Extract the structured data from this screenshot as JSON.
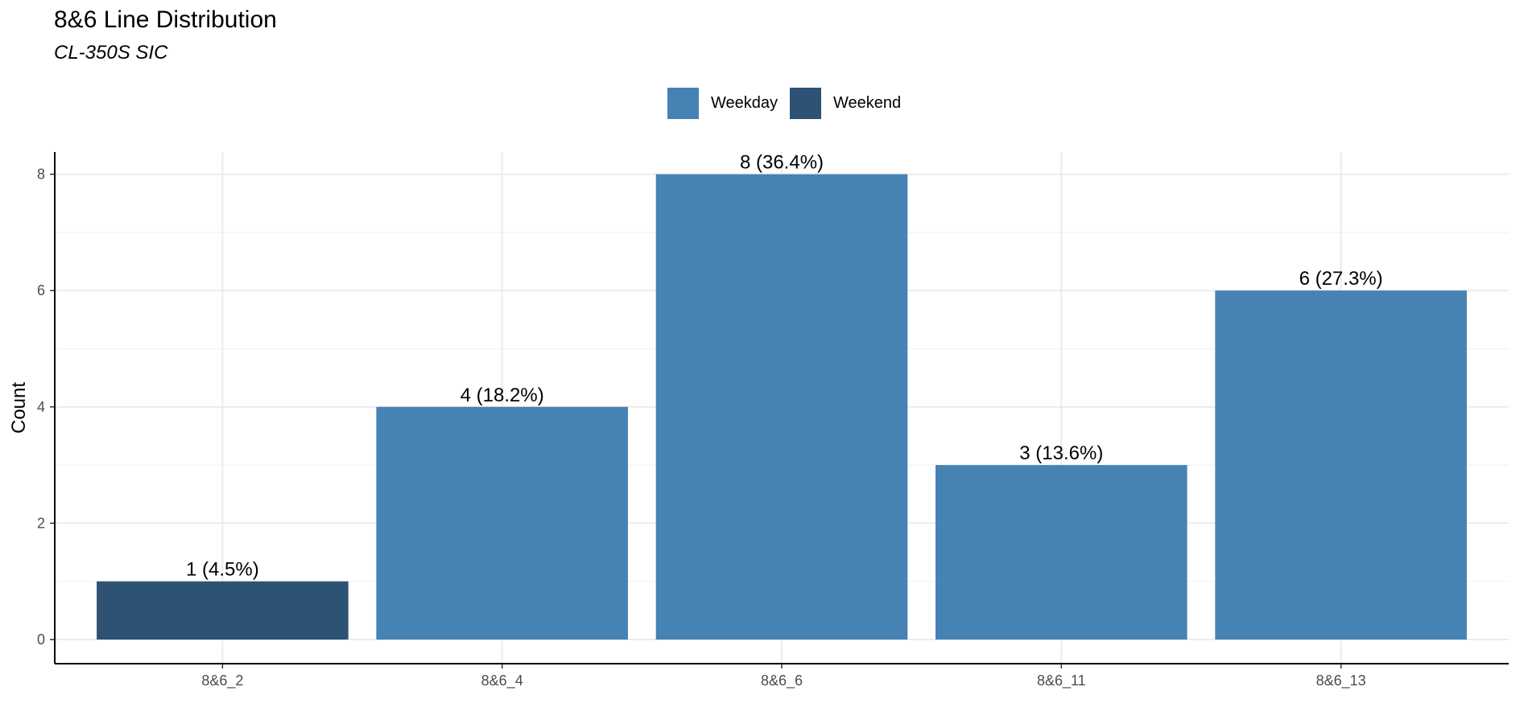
{
  "chart_data": {
    "type": "bar",
    "title": "8&6 Line Distribution",
    "subtitle": "CL-350S SIC",
    "xlabel": "",
    "ylabel": "Count",
    "categories": [
      "8&6_2",
      "8&6_4",
      "8&6_6",
      "8&6_11",
      "8&6_13"
    ],
    "values": [
      1,
      4,
      8,
      3,
      6
    ],
    "groups": [
      "Weekend",
      "Weekday",
      "Weekday",
      "Weekday",
      "Weekday"
    ],
    "data_labels": [
      "1 (4.5%)",
      "4 (18.2%)",
      "8 (36.4%)",
      "3 (13.6%)",
      "6 (27.3%)"
    ],
    "ylim": [
      0,
      8.4
    ],
    "yticks": [
      0,
      2,
      4,
      6,
      8
    ],
    "grid": true,
    "legend": {
      "position": "top",
      "entries": [
        {
          "name": "Weekday",
          "color": "#4682b4"
        },
        {
          "name": "Weekend",
          "color": "#2d5273"
        }
      ]
    }
  }
}
